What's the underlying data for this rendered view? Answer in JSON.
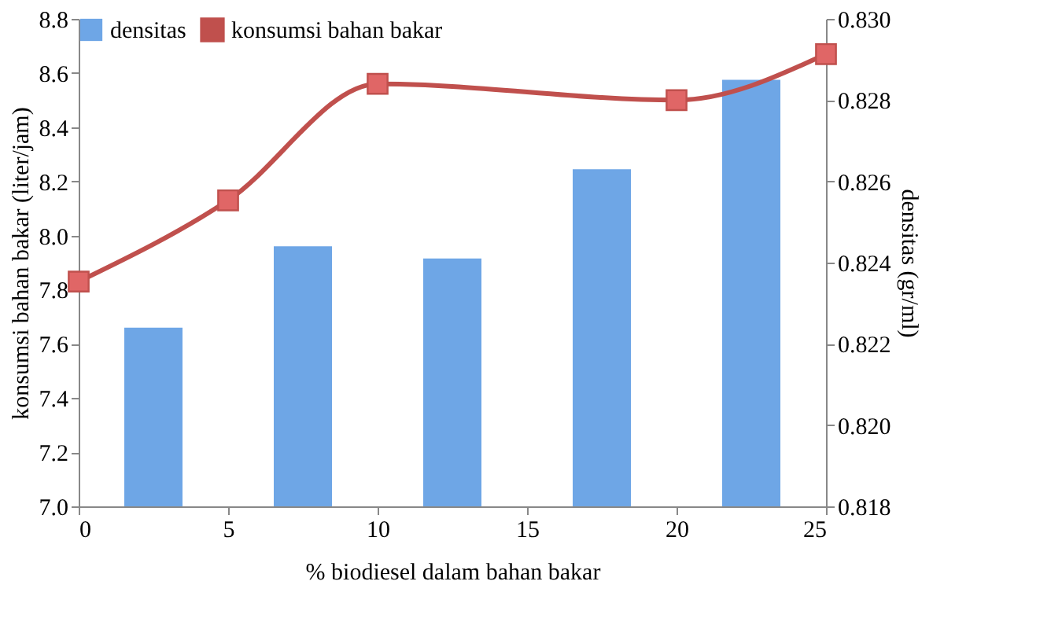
{
  "chart_data": {
    "type": "bar",
    "xlabel": "% biodiesel dalam bahan bakar",
    "ylabel": "konsumsi bahan bakar (liter/jam)",
    "y2label": "densitas (gr/ml)",
    "xlim": [
      0,
      25
    ],
    "xticks": [
      0,
      5,
      10,
      15,
      20,
      25
    ],
    "ylim": [
      7.0,
      8.8
    ],
    "yticks": [
      {
        "value": 7,
        "label": "7.0"
      },
      7.2,
      7.4,
      7.6,
      7.8,
      {
        "value": 8,
        "label": "8.0"
      },
      8.2,
      8.4,
      8.6,
      8.8
    ],
    "y2lim": [
      0.818,
      0.83
    ],
    "y2ticks": [
      0.818,
      {
        "value": 0.82,
        "label": "0.820"
      },
      0.822,
      0.824,
      0.826,
      0.828,
      {
        "value": 0.83,
        "label": "0.830"
      }
    ],
    "series": [
      {
        "name": "densitas",
        "axis": "y2",
        "color": "#6ea6e6",
        "x": [
          2.5,
          7.5,
          12.5,
          17.5,
          22.5
        ],
        "values": [
          0.8224,
          0.8244,
          0.8241,
          0.8263,
          0.8285
        ]
      },
      {
        "name": "konsumsi bahan bakar",
        "type": "line",
        "color": "#c0504d",
        "x": [
          0,
          5,
          10,
          20,
          25
        ],
        "values": [
          7.83,
          8.13,
          8.56,
          8.5,
          8.67
        ],
        "marker": "square",
        "line_style": "solid"
      }
    ],
    "legend": "top",
    "grid": false
  }
}
